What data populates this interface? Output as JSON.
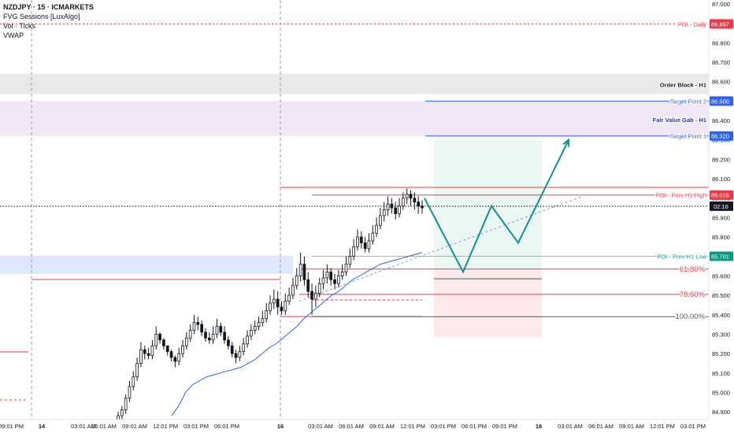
{
  "legend": {
    "symbol_line": "NZDJPY · 15 · ICMARKETS",
    "indicators": [
      "FVG Sessions [LuxAlgo]",
      "Vol · Ticks",
      "VWAP"
    ]
  },
  "colors": {
    "bull": "#131722",
    "bear": "#131722",
    "poi_red": "#f23645",
    "target_blue": "#2962ff",
    "vwap_blue": "#2962ff",
    "path_teal": "#138f8f",
    "order_block_fill": "#e9e9e9",
    "fvg_fill": "#f2e7f7",
    "low_zone_fill": "#dde8fb",
    "long_zone_fill": "#eaf7f3",
    "stop_zone_fill": "#fde9ea",
    "fib_orange": "#f5a623",
    "current_price_bg": "#131722",
    "teal_label_bg": "#089981"
  },
  "chart_data": {
    "type": "candlestick",
    "symbol": "NZDJPY",
    "timeframe": "15",
    "y_axis": {
      "ylim": [
        84.86,
        87.02
      ],
      "ticks": [
        "87.000",
        "86.900",
        "86.800",
        "86.700",
        "86.600",
        "86.500",
        "86.400",
        "86.300",
        "86.200",
        "86.100",
        "86.000",
        "85.900",
        "85.800",
        "85.700",
        "85.600",
        "85.500",
        "85.400",
        "85.300",
        "85.200",
        "85.100",
        "85.000",
        "84.900"
      ]
    },
    "x_axis": {
      "labels": [
        "09:01 PM",
        "14",
        "03:01 AM",
        "06:01 AM",
        "09:01 AM",
        "12:01 PM",
        "03:01 PM",
        "06:01 PM",
        "16",
        "03:01 AM",
        "06:01 AM",
        "09:01 AM",
        "12:01 PM",
        "03:01 PM",
        "06:01 PM",
        "09:01 PM",
        "18",
        "03:01 AM",
        "06:01 AM",
        "09:01 AM",
        "12:01 PM",
        "03:01 PM"
      ],
      "bold_labels": [
        "14",
        "16",
        "18"
      ]
    },
    "candles": {
      "open": [
        84.86,
        84.88,
        84.91,
        84.97,
        85.03,
        85.08,
        85.15,
        85.22,
        85.2,
        85.19,
        85.24,
        85.3,
        85.27,
        85.24,
        85.21,
        85.18,
        85.16,
        85.2,
        85.24,
        85.28,
        85.32,
        85.36,
        85.35,
        85.31,
        85.28,
        85.27,
        85.3,
        85.34,
        85.31,
        85.27,
        85.24,
        85.2,
        85.18,
        85.21,
        85.25,
        85.29,
        85.32,
        85.34,
        85.36,
        85.38,
        85.42,
        85.46,
        85.48,
        85.44,
        85.42,
        85.47,
        85.5,
        85.55,
        85.6,
        85.66,
        85.58,
        85.52,
        85.48,
        85.51,
        85.56,
        85.59,
        85.62,
        85.58,
        85.56,
        85.6,
        85.62,
        85.66,
        85.7,
        85.75,
        85.8,
        85.77,
        85.74,
        85.78,
        85.82,
        85.86,
        85.91,
        85.94,
        85.97,
        85.95,
        85.92,
        85.96,
        86.0,
        86.02,
        86.0,
        85.98,
        85.96
      ],
      "close": [
        84.88,
        84.91,
        84.97,
        85.03,
        85.08,
        85.15,
        85.22,
        85.2,
        85.19,
        85.24,
        85.3,
        85.27,
        85.24,
        85.21,
        85.18,
        85.16,
        85.2,
        85.24,
        85.28,
        85.32,
        85.36,
        85.35,
        85.31,
        85.28,
        85.27,
        85.3,
        85.34,
        85.31,
        85.27,
        85.24,
        85.2,
        85.18,
        85.21,
        85.25,
        85.29,
        85.32,
        85.34,
        85.36,
        85.38,
        85.42,
        85.46,
        85.48,
        85.44,
        85.42,
        85.47,
        85.5,
        85.55,
        85.6,
        85.66,
        85.58,
        85.52,
        85.48,
        85.51,
        85.56,
        85.59,
        85.62,
        85.58,
        85.56,
        85.6,
        85.62,
        85.66,
        85.7,
        85.75,
        85.8,
        85.77,
        85.74,
        85.78,
        85.82,
        85.86,
        85.91,
        85.94,
        85.97,
        85.95,
        85.92,
        85.96,
        86.0,
        86.02,
        86.0,
        85.98,
        85.96,
        85.95
      ],
      "high": [
        84.9,
        84.93,
        84.99,
        85.06,
        85.11,
        85.18,
        85.26,
        85.24,
        85.23,
        85.27,
        85.34,
        85.31,
        85.28,
        85.24,
        85.22,
        85.19,
        85.23,
        85.27,
        85.31,
        85.35,
        85.4,
        85.39,
        85.37,
        85.33,
        85.31,
        85.34,
        85.38,
        85.36,
        85.34,
        85.29,
        85.26,
        85.22,
        85.24,
        85.28,
        85.32,
        85.35,
        85.37,
        85.39,
        85.42,
        85.46,
        85.5,
        85.53,
        85.52,
        85.47,
        85.51,
        85.54,
        85.59,
        85.64,
        85.72,
        85.7,
        85.62,
        85.56,
        85.55,
        85.59,
        85.63,
        85.66,
        85.64,
        85.61,
        85.63,
        85.66,
        85.7,
        85.74,
        85.79,
        85.84,
        85.83,
        85.8,
        85.82,
        85.86,
        85.9,
        85.95,
        85.98,
        86.01,
        86.0,
        85.98,
        86.0,
        86.03,
        86.05,
        86.04,
        86.03,
        86.01,
        85.99
      ],
      "low": [
        84.84,
        84.86,
        84.89,
        84.95,
        85.01,
        85.06,
        85.13,
        85.17,
        85.17,
        85.17,
        85.22,
        85.25,
        85.22,
        85.19,
        85.16,
        85.13,
        85.14,
        85.18,
        85.22,
        85.26,
        85.3,
        85.32,
        85.29,
        85.26,
        85.25,
        85.25,
        85.28,
        85.29,
        85.25,
        85.22,
        85.18,
        85.15,
        85.16,
        85.19,
        85.23,
        85.27,
        85.3,
        85.32,
        85.34,
        85.36,
        85.4,
        85.43,
        85.4,
        85.4,
        85.4,
        85.45,
        85.48,
        85.53,
        85.57,
        85.55,
        85.49,
        85.4,
        85.44,
        85.49,
        85.53,
        85.56,
        85.55,
        85.53,
        85.54,
        85.58,
        85.6,
        85.64,
        85.68,
        85.73,
        85.74,
        85.72,
        85.72,
        85.76,
        85.8,
        85.84,
        85.88,
        85.91,
        85.92,
        85.89,
        85.9,
        85.94,
        85.97,
        85.96,
        85.94,
        85.92,
        85.92
      ]
    },
    "vwap": [
      84.88,
      84.93,
      85.0,
      85.04,
      85.06,
      85.08,
      85.09,
      85.1,
      85.11,
      85.12,
      85.13,
      85.15,
      85.17,
      85.2,
      85.23,
      85.25,
      85.28,
      85.31,
      85.34,
      85.38,
      85.41,
      85.44,
      85.47,
      85.5,
      85.52,
      85.55,
      85.58,
      85.6,
      85.62,
      85.64,
      85.66,
      85.67,
      85.68,
      85.69,
      85.7,
      85.71,
      85.72
    ],
    "levels": [
      {
        "label": "POI - Daily",
        "price": 86.897,
        "value_label": "86.897"
      },
      {
        "label": "Order Block - H1",
        "price": 86.585
      },
      {
        "label": "Target Point 2",
        "price": 86.5,
        "value_label": "86.500"
      },
      {
        "label": "Fair Value Gab - H1",
        "price": 86.405
      },
      {
        "label": "Target Point 1",
        "price": 86.32,
        "value_label": "86.320"
      },
      {
        "label": "POI - Prev H1 High",
        "price": 86.016,
        "value_label": "86.016"
      },
      {
        "label": "POI - Prev H1 Low",
        "price": 85.701,
        "value_label": "85.701"
      },
      {
        "label": "61.80%",
        "price": 85.635
      },
      {
        "label": "78.60%",
        "price": 85.505
      },
      {
        "label": "100.00%",
        "price": 85.39
      }
    ],
    "current_price_label": "02:16",
    "current_price": 85.9585,
    "zones": [
      {
        "name": "order-block-h1",
        "price_from": 86.535,
        "price_to": 86.64
      },
      {
        "name": "fair-value-gap-h1",
        "price_from": 86.32,
        "price_to": 86.5
      },
      {
        "name": "prev-low-zone",
        "price_from": 85.61,
        "price_to": 85.705
      },
      {
        "name": "long-target-zone",
        "price_from": 85.63,
        "price_to": 86.3
      },
      {
        "name": "long-stop-zone",
        "price_from": 85.285,
        "price_to": 85.63
      }
    ],
    "projection_path": [
      86.0,
      85.62,
      85.96,
      85.77,
      86.3
    ],
    "grid": false
  }
}
